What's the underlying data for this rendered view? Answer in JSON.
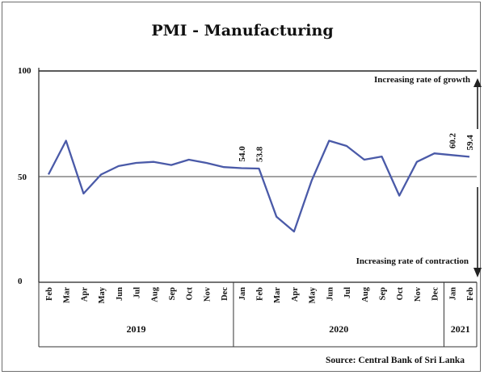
{
  "chart_data": {
    "type": "line",
    "title": "PMI - Manufacturing",
    "ylim": [
      0,
      100
    ],
    "yticks": [
      "0",
      "50",
      "100"
    ],
    "threshold": 50,
    "categories": [
      "Feb",
      "Mar",
      "Apr",
      "May",
      "Jun",
      "Jul",
      "Aug",
      "Sep",
      "Oct",
      "Nov",
      "Dec",
      "Jan",
      "Feb",
      "Mar",
      "Apr",
      "May",
      "Jun",
      "Jul",
      "Aug",
      "Sep",
      "Oct",
      "Nov",
      "Dec",
      "Jan",
      "Feb"
    ],
    "years": [
      {
        "label": "2019",
        "start": 0,
        "end": 10
      },
      {
        "label": "2020",
        "start": 11,
        "end": 22
      },
      {
        "label": "2021",
        "start": 23,
        "end": 24
      }
    ],
    "values": [
      51.0,
      67.0,
      42.0,
      51.0,
      55.0,
      56.5,
      57.0,
      55.5,
      58.0,
      56.5,
      54.5,
      54.0,
      53.8,
      31.0,
      24.0,
      48.0,
      67.0,
      64.5,
      58.0,
      59.5,
      41.0,
      57.0,
      61.0,
      60.2,
      59.4
    ],
    "data_labels": [
      {
        "index": 11,
        "text": "54.0"
      },
      {
        "index": 12,
        "text": "53.8"
      },
      {
        "index": 23,
        "text": "60.2"
      },
      {
        "index": 24,
        "text": "59.4"
      }
    ],
    "annotations": {
      "growth": "Increasing rate of growth",
      "contraction": "Increasing rate of contraction"
    },
    "source": "Source: Central Bank of Sri Lanka",
    "colors": {
      "line": "#4a5aa8",
      "axis": "#333333"
    }
  }
}
